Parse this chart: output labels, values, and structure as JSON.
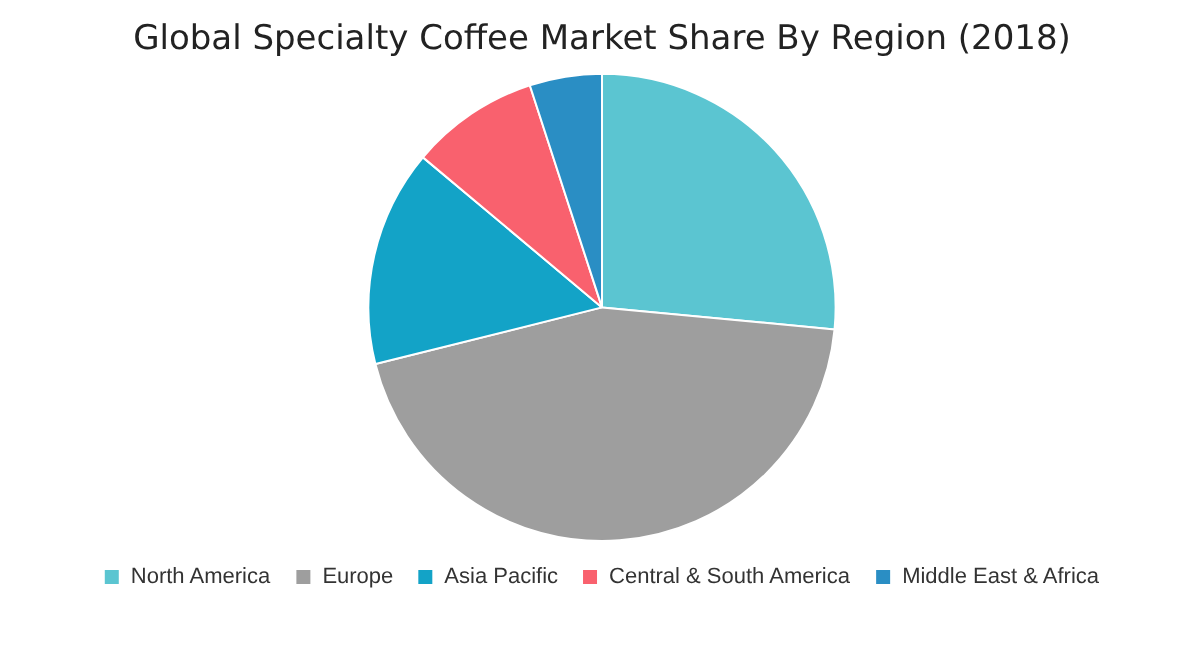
{
  "chart_data": {
    "type": "pie",
    "title": "Global Specialty Coffee Market Share By Region (2018)",
    "categories": [
      "North America",
      "Europe",
      "Asia Pacific",
      "Central & South America",
      "Middle East & Africa"
    ],
    "values": [
      26.5,
      44.6,
      15,
      8.9,
      5
    ],
    "colors": [
      "#5bc5d1",
      "#9e9e9e",
      "#13a3c7",
      "#f9616e",
      "#2a8ec4"
    ],
    "legend": "bottom"
  }
}
